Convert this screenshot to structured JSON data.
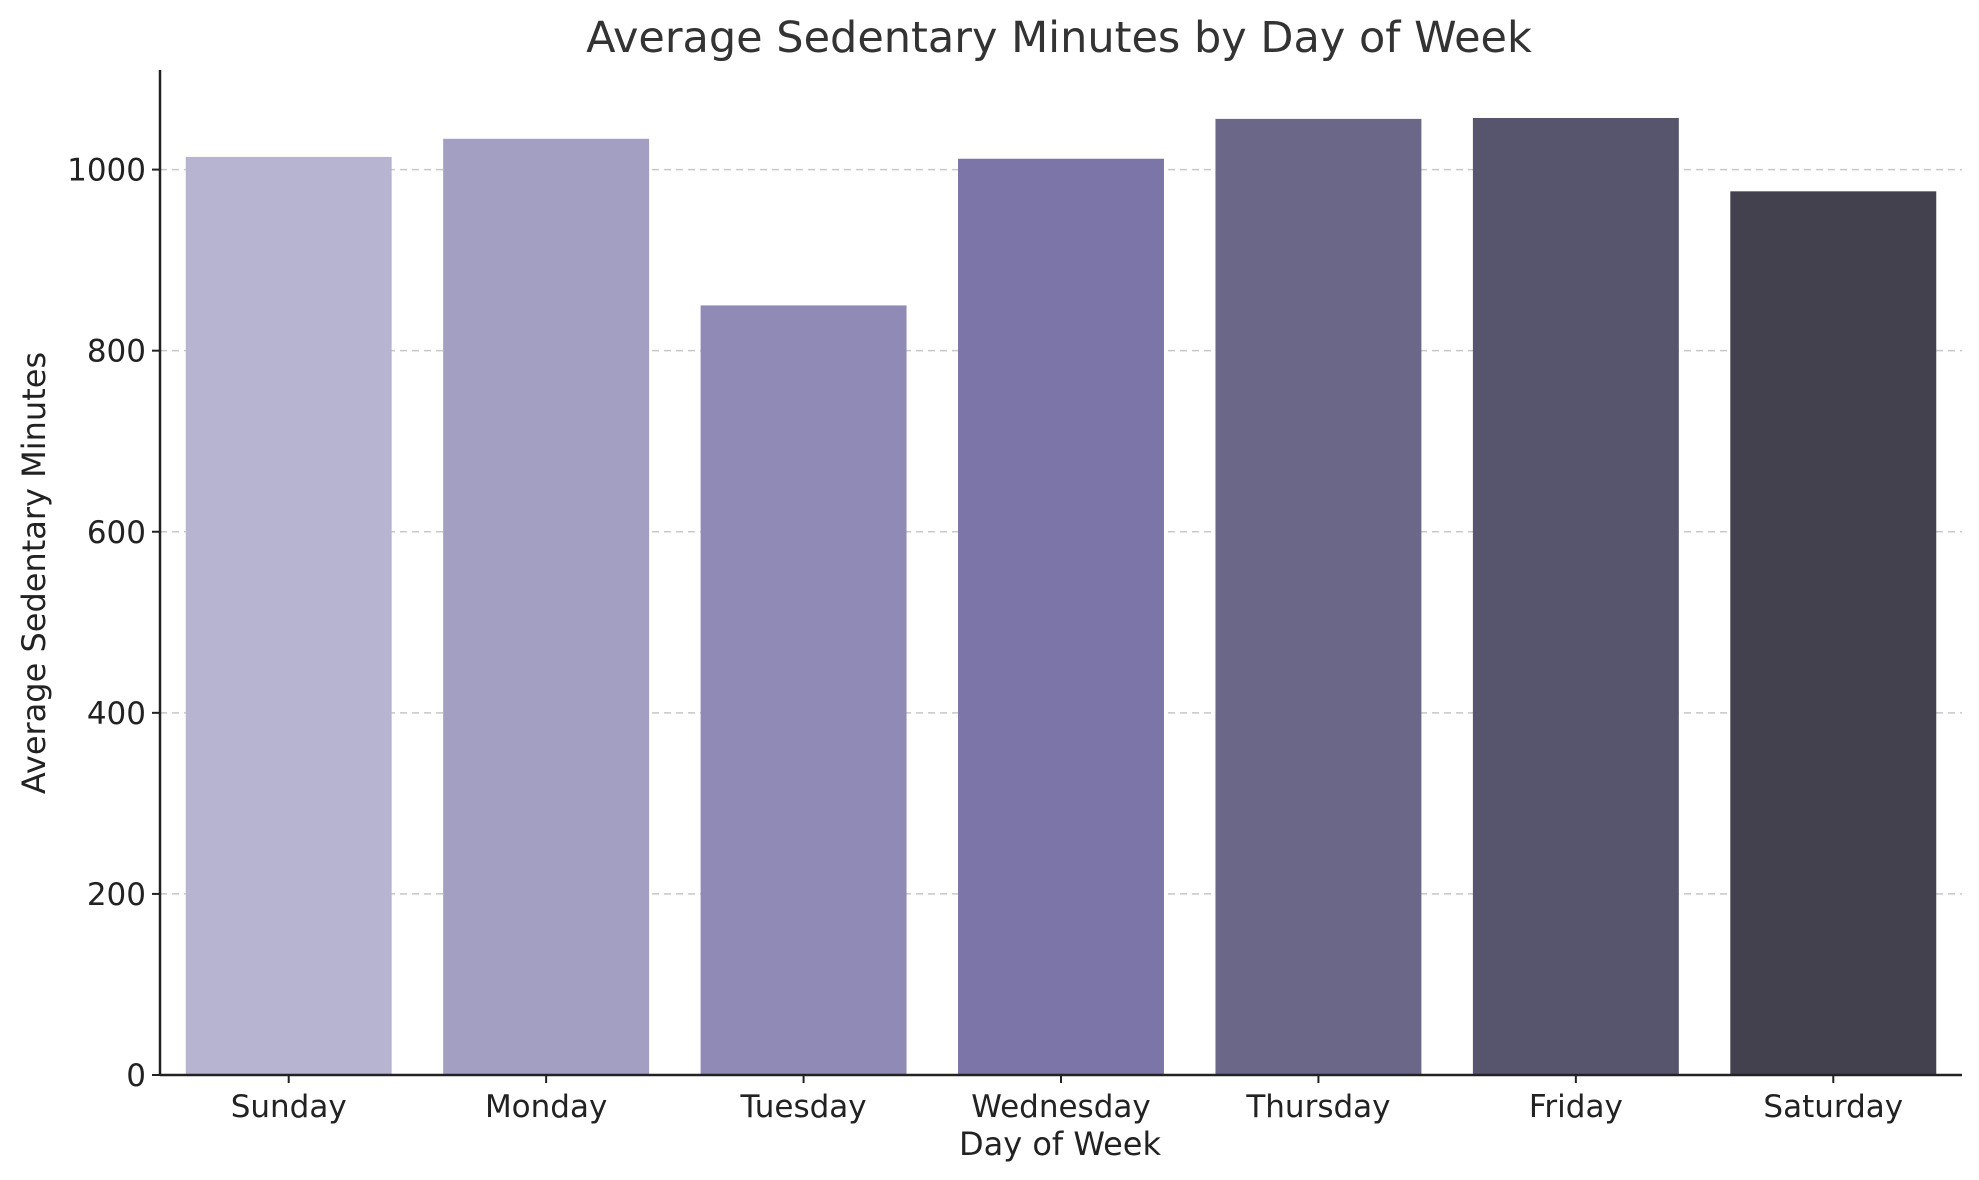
{
  "chart_data": {
    "type": "bar",
    "title": "Average Sedentary Minutes by Day of Week",
    "xlabel": "Day of Week",
    "ylabel": "Average Sedentary Minutes",
    "categories": [
      "Sunday",
      "Monday",
      "Tuesday",
      "Wednesday",
      "Thursday",
      "Friday",
      "Saturday"
    ],
    "values": [
      1014,
      1034,
      850,
      1012,
      1056,
      1057,
      976
    ],
    "colors": [
      "#b7b4d2",
      "#a29fc3",
      "#8f8ab6",
      "#7c76a8",
      "#6b6789",
      "#57546d",
      "#44414f"
    ],
    "ylim": [
      0,
      1110
    ],
    "yticks": [
      0,
      200,
      400,
      600,
      800,
      1000
    ],
    "grid": "y-dashed",
    "legend": "none"
  }
}
